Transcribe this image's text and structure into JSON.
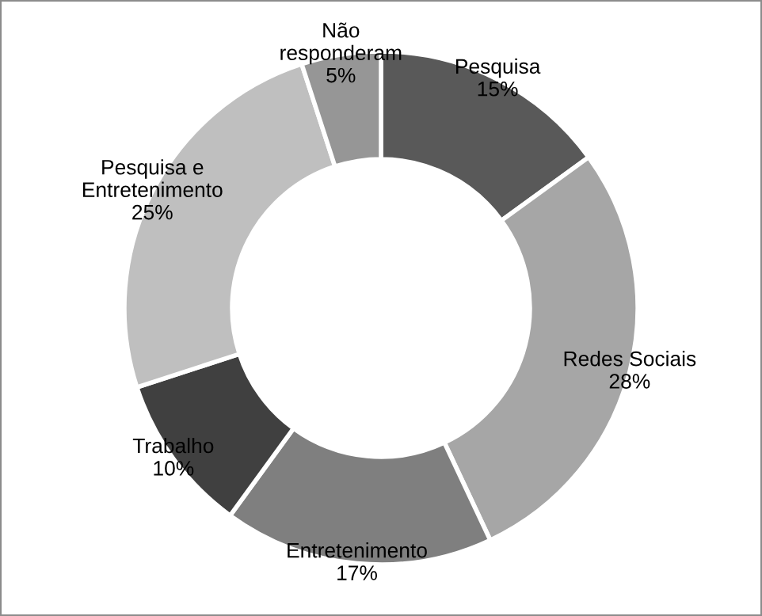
{
  "chart_data": {
    "type": "donut",
    "categories": [
      "Pesquisa",
      "Redes Sociais",
      "Entretenimento",
      "Trabalho",
      "Pesquisa e\nEntretenimento",
      "Não\nresponderam"
    ],
    "values": [
      15,
      28,
      17,
      10,
      25,
      5
    ],
    "value_labels": [
      "15%",
      "28%",
      "17%",
      "10%",
      "25%",
      "5%"
    ],
    "colors": [
      "#595959",
      "#a6a6a6",
      "#7f7f7f",
      "#404040",
      "#bfbfbf",
      "#969696"
    ],
    "legend": false
  }
}
